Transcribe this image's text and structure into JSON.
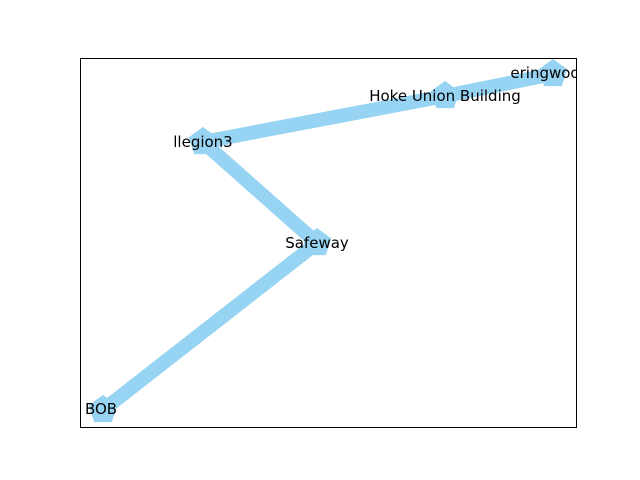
{
  "graph": {
    "node_color": "#97d3f2",
    "edge_color": "#97d3f2",
    "label_color": "#000000",
    "frame_color": "#000000",
    "node_shape": "pentagon",
    "nodes": [
      {
        "id": "eringwood",
        "label": "eringwoo"
      },
      {
        "id": "hoke",
        "label": "Hoke Union Building"
      },
      {
        "id": "llegion3",
        "label": "llegion3"
      },
      {
        "id": "safeway",
        "label": "Safeway"
      },
      {
        "id": "bob",
        "label": "BOB"
      }
    ],
    "edges": [
      {
        "source": "eringwood",
        "target": "hoke"
      },
      {
        "source": "hoke",
        "target": "llegion3"
      },
      {
        "source": "llegion3",
        "target": "safeway"
      },
      {
        "source": "safeway",
        "target": "bob"
      }
    ]
  }
}
